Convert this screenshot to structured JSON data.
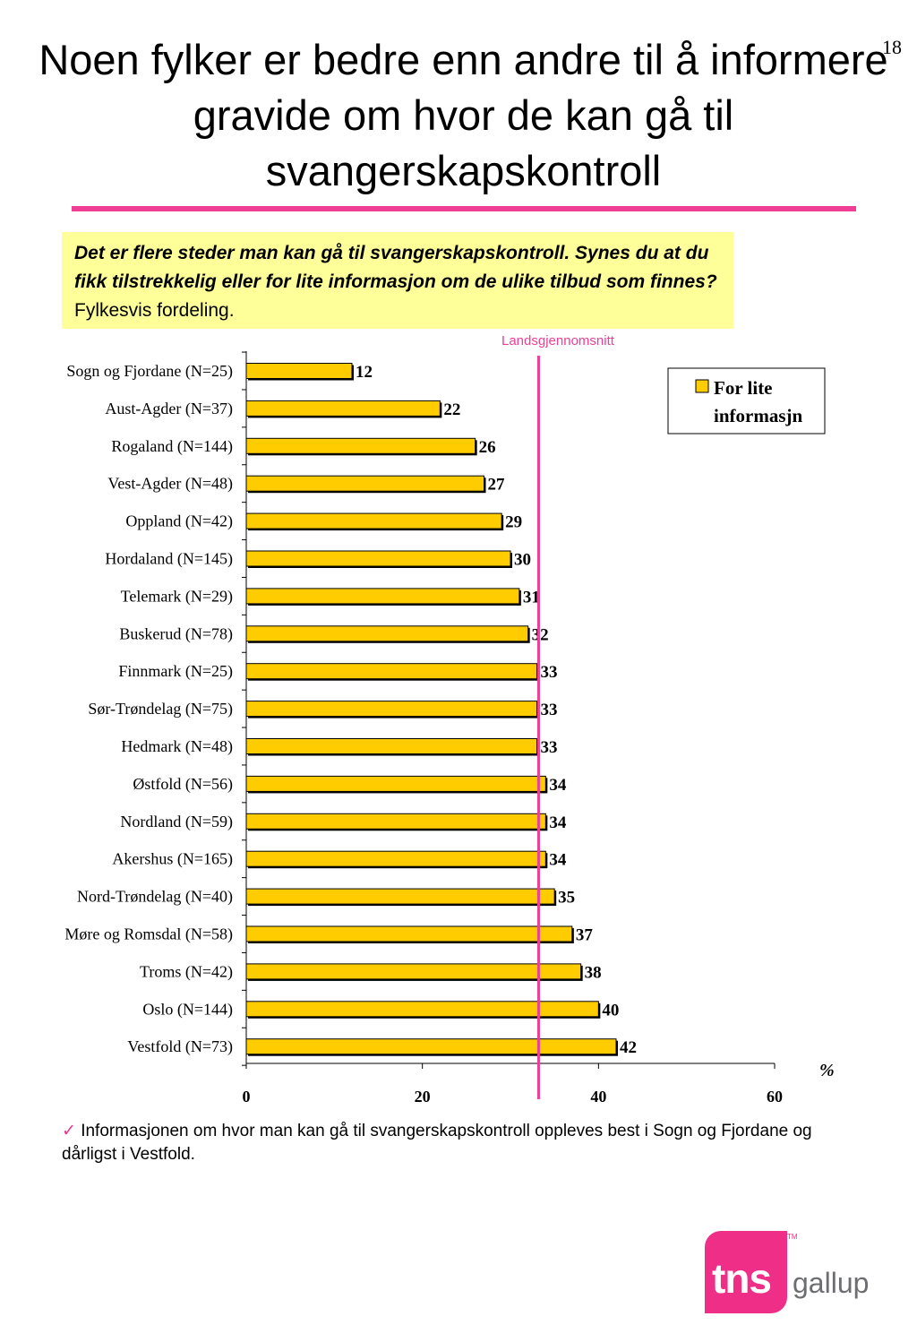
{
  "page": {
    "page_number": "18",
    "title": "Noen fylker er bedre enn andre til å informere gravide om hvor de kan gå til svangerskapskontroll",
    "question_bold": "Det er flere steder man kan gå til svangerskapskontroll. Synes du at du fikk tilstrekkelig eller for lite informasjon om de ulike tilbud som finnes?",
    "question_plain": "Fylkesvis fordeling.",
    "footnote_check": "✓",
    "footnote": "Informasjonen om hvor man kan gå til svangerskapskontroll oppleves best i Sogn og Fjordane og dårligst i Vestfold.",
    "logo_text": "tns",
    "logo_sub": "gallup",
    "logo_tm": "TM"
  },
  "colors": {
    "accent": "#ee3e96",
    "bar": "#ffcc00",
    "box": "#ffff99"
  },
  "chart_data": {
    "type": "bar",
    "orientation": "horizontal",
    "categories": [
      "Sogn og Fjordane (N=25)",
      "Aust-Agder (N=37)",
      "Rogaland (N=144)",
      "Vest-Agder (N=48)",
      "Oppland (N=42)",
      "Hordaland (N=145)",
      "Telemark (N=29)",
      "Buskerud (N=78)",
      "Finnmark (N=25)",
      "Sør-Trøndelag (N=75)",
      "Hedmark (N=48)",
      "Østfold (N=56)",
      "Nordland (N=59)",
      "Akershus (N=165)",
      "Nord-Trøndelag (N=40)",
      "Møre og Romsdal (N=58)",
      "Troms (N=42)",
      "Oslo (N=144)",
      "Vestfold (N=73)"
    ],
    "series": [
      {
        "name": "For lite informasjn",
        "values": [
          12,
          22,
          26,
          27,
          29,
          30,
          31,
          32,
          33,
          33,
          33,
          34,
          34,
          34,
          35,
          37,
          38,
          40,
          42
        ]
      }
    ],
    "xlim": [
      0,
      60
    ],
    "xticks": [
      0,
      20,
      40,
      60
    ],
    "xlabel": "%",
    "legend": "top-right",
    "legend_lines": [
      "For lite",
      "informasjn"
    ],
    "reference_line": {
      "label": "Landsgjennomsnitt",
      "value": 33.2
    }
  }
}
